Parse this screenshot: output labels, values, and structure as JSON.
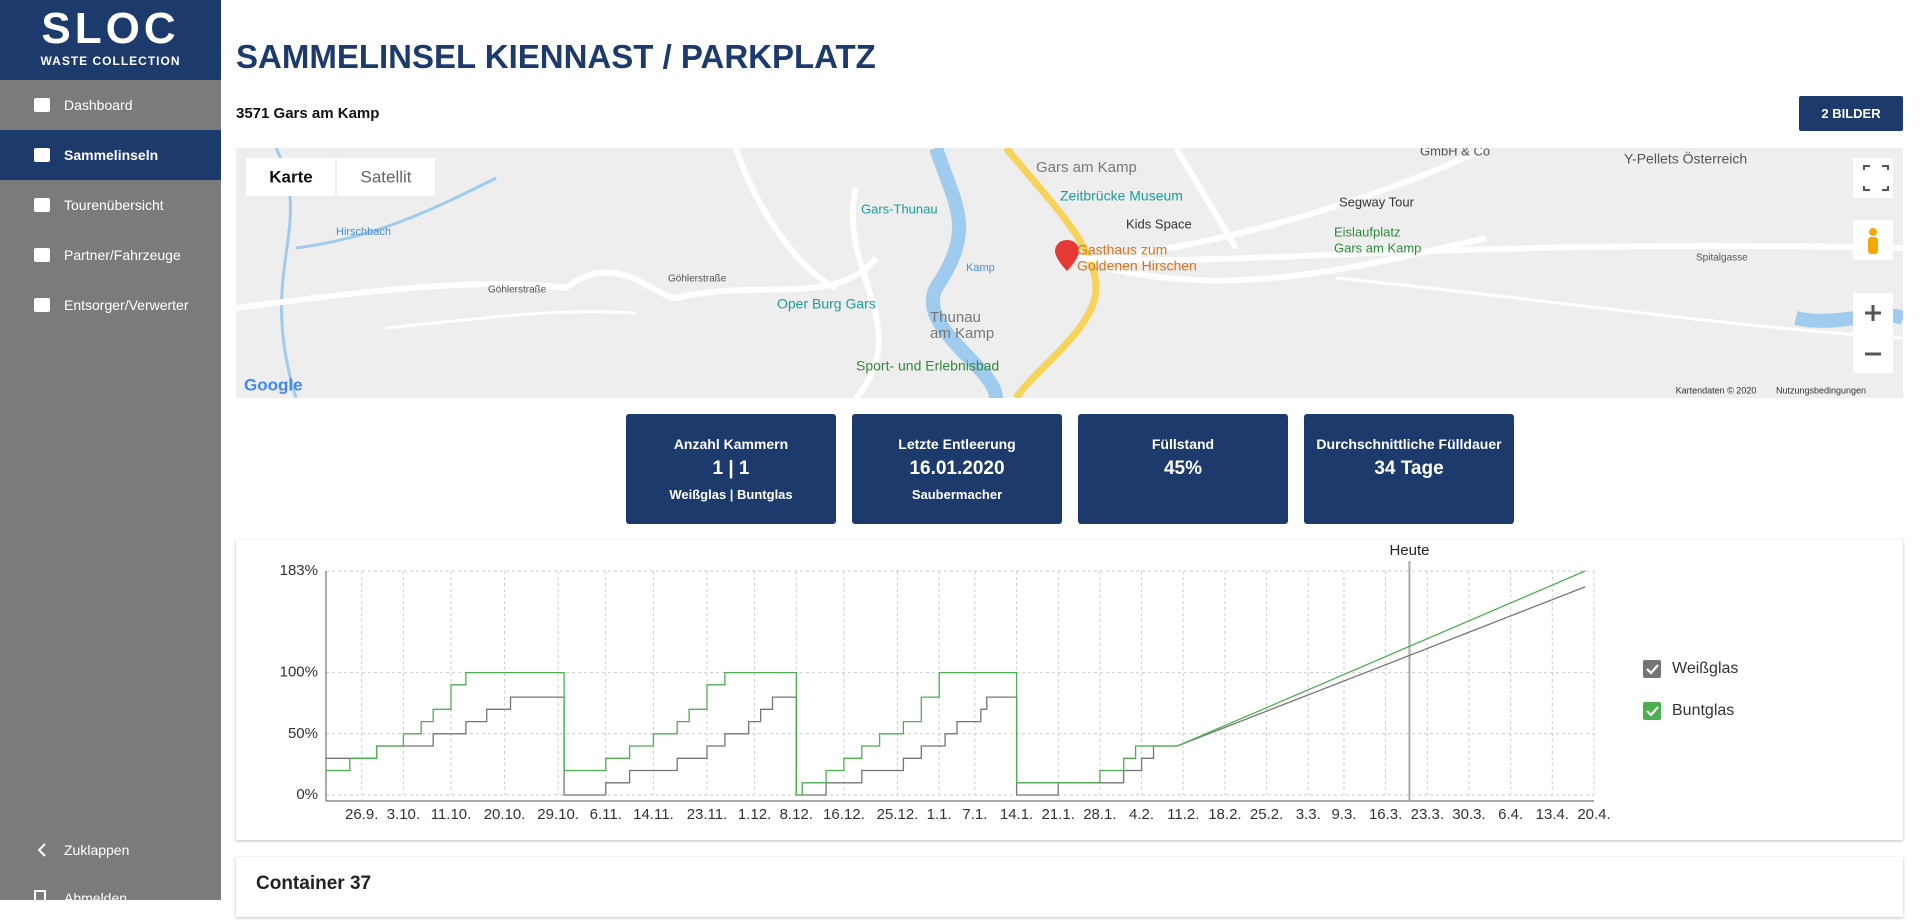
{
  "sidebar": {
    "logo_title": "SLOC",
    "logo_subtitle": "WASTE COLLECTION",
    "menu": [
      {
        "label": "Dashboard",
        "active": false
      },
      {
        "label": "Sammelinseln",
        "active": true
      },
      {
        "label": "Tourenübersicht",
        "active": false
      },
      {
        "label": "Partner/Fahrzeuge",
        "active": false
      },
      {
        "label": "Entsorger/Verwerter",
        "active": false
      }
    ],
    "footer_menu": [
      "Zuklappen",
      "Abmelden"
    ]
  },
  "header": {
    "title": "SAMMELINSEL KIENNAST / PARKPLATZ",
    "address": "3571 Gars am Kamp",
    "button": "2 BILDER"
  },
  "map": {
    "tabs": [
      "Karte",
      "Satellit"
    ],
    "labels": [
      "Gars am Kamp",
      "Zeitbrücke Museum",
      "Gars-Thunau",
      "Kids Space",
      "Segway Tour",
      "Eislaufplatz",
      "Gars am Kamp",
      "Gasthaus zum",
      "Goldenen Hirschen",
      "Oper Burg Gars",
      "Thunau",
      "am Kamp",
      "Sport- und Erlebnisbad",
      "Y-Pellets Österreich",
      "GmbH & Co",
      "Hirschbach",
      "Göhlerstraße",
      "Göhlerstraße",
      "Kamp",
      "Spitalgasse"
    ],
    "logo": "Google",
    "attribution": [
      "Kartendaten © 2020",
      "Nutzungsbedingungen"
    ]
  },
  "cards": [
    {
      "label": "Anzahl Kammern",
      "value": "1 | 1",
      "detail": "Weißglas | Buntglas"
    },
    {
      "label": "Letzte Entleerung",
      "value": "16.01.2020",
      "detail": "Saubermacher"
    },
    {
      "label": "Füllstand",
      "value": "45%"
    },
    {
      "label": "Durchschnittliche Fülldauer",
      "value": "34 Tage"
    }
  ],
  "chart_data": {
    "type": "line",
    "annotation": {
      "label": "Heute",
      "x": 176
    },
    "xlim": [
      -6,
      207
    ],
    "xticks": [
      {
        "value": 0,
        "label": "26.9."
      },
      {
        "value": 7,
        "label": "3.10."
      },
      {
        "value": 15,
        "label": "11.10."
      },
      {
        "value": 24,
        "label": "20.10."
      },
      {
        "value": 33,
        "label": "29.10."
      },
      {
        "value": 41,
        "label": "6.11."
      },
      {
        "value": 49,
        "label": "14.11."
      },
      {
        "value": 58,
        "label": "23.11."
      },
      {
        "value": 66,
        "label": "1.12."
      },
      {
        "value": 73,
        "label": "8.12."
      },
      {
        "value": 81,
        "label": "16.12."
      },
      {
        "value": 90,
        "label": "25.12."
      },
      {
        "value": 97,
        "label": "1.1."
      },
      {
        "value": 103,
        "label": "7.1."
      },
      {
        "value": 110,
        "label": "14.1."
      },
      {
        "value": 117,
        "label": "21.1."
      },
      {
        "value": 124,
        "label": "28.1."
      },
      {
        "value": 131,
        "label": "4.2."
      },
      {
        "value": 138,
        "label": "11.2."
      },
      {
        "value": 145,
        "label": "18.2."
      },
      {
        "value": 152,
        "label": "25.2."
      },
      {
        "value": 159,
        "label": "3.3."
      },
      {
        "value": 165,
        "label": "9.3."
      },
      {
        "value": 172,
        "label": "16.3."
      },
      {
        "value": 179,
        "label": "23.3."
      },
      {
        "value": 186,
        "label": "30.3."
      },
      {
        "value": 193,
        "label": "6.4."
      },
      {
        "value": 200,
        "label": "13.4."
      },
      {
        "value": 207,
        "label": "20.4."
      }
    ],
    "ylim": [
      0,
      183
    ],
    "yticks": [
      {
        "value": 0,
        "label": "0%"
      },
      {
        "value": 50,
        "label": "50%"
      },
      {
        "value": 100,
        "label": "100%"
      },
      {
        "value": 183,
        "label": "183%"
      }
    ],
    "grid": true,
    "series": [
      {
        "name": "Weißglas",
        "color": "#757575",
        "x": [
          -6,
          2.5,
          2.5,
          12,
          12,
          17.5,
          17.5,
          21,
          21,
          25,
          25,
          34,
          34,
          41,
          41,
          45,
          45,
          53,
          53,
          58,
          58,
          61,
          61,
          65,
          65,
          67,
          67,
          69,
          69,
          73,
          73,
          78,
          78,
          84,
          84,
          91,
          91,
          94,
          94,
          98,
          98,
          100,
          100,
          104,
          104,
          105,
          105,
          110,
          110,
          117,
          117,
          128,
          128,
          131,
          131,
          133,
          133,
          137,
          205.5
        ],
        "values": [
          30,
          30,
          40,
          40,
          50,
          50,
          60,
          60,
          70,
          70,
          80,
          80,
          0,
          0,
          10,
          10,
          20,
          20,
          30,
          30,
          40,
          40,
          50,
          50,
          60,
          60,
          70,
          70,
          80,
          80,
          0,
          0,
          10,
          10,
          20,
          20,
          30,
          30,
          40,
          40,
          50,
          50,
          60,
          60,
          70,
          70,
          80,
          80,
          0,
          0,
          10,
          10,
          20,
          20,
          30,
          30,
          40,
          40,
          170
        ]
      },
      {
        "name": "Buntglas",
        "color": "#4caf50",
        "x": [
          -6,
          -2,
          -2,
          2.5,
          2.5,
          7,
          7,
          10,
          10,
          12,
          12,
          15,
          15,
          17.5,
          17.5,
          34,
          34,
          41,
          41,
          45,
          45,
          49,
          49,
          53,
          53,
          55,
          55,
          58,
          58,
          61,
          61,
          73,
          73,
          74,
          74,
          78,
          78,
          81,
          81,
          84,
          84,
          87,
          87,
          91,
          91,
          94,
          94,
          97,
          97,
          110,
          110,
          124,
          124,
          128,
          128,
          130,
          130,
          137,
          205.5
        ],
        "values": [
          20,
          20,
          30,
          30,
          40,
          40,
          50,
          50,
          60,
          60,
          70,
          70,
          90,
          90,
          100,
          100,
          20,
          20,
          30,
          30,
          40,
          40,
          50,
          50,
          60,
          60,
          70,
          70,
          90,
          90,
          100,
          100,
          0,
          0,
          10,
          10,
          20,
          20,
          30,
          30,
          40,
          40,
          50,
          50,
          60,
          60,
          80,
          80,
          100,
          100,
          10,
          10,
          20,
          20,
          30,
          30,
          40,
          40,
          183
        ]
      }
    ]
  },
  "section": {
    "title": "Container 37"
  }
}
